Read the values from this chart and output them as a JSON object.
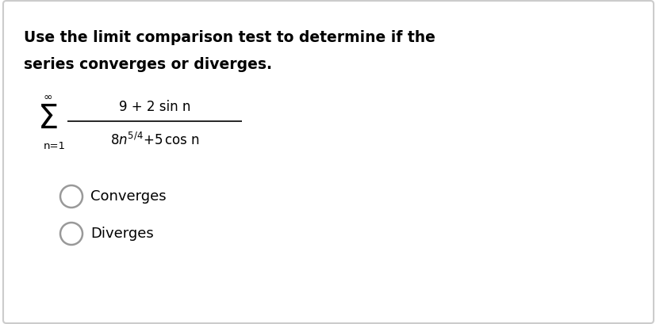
{
  "title_line1": "Use the limit comparison test to determine if the",
  "title_line2": "series converges or diverges.",
  "bg_color": "#ffffff",
  "border_color": "#cccccc",
  "text_color": "#000000",
  "option1": "Converges",
  "option2": "Diverges",
  "numerator": "9 + 2 sin n",
  "sigma_lower": "n=1",
  "sigma_upper": "∞",
  "figsize": [
    8.28,
    4.09
  ],
  "dpi": 100
}
